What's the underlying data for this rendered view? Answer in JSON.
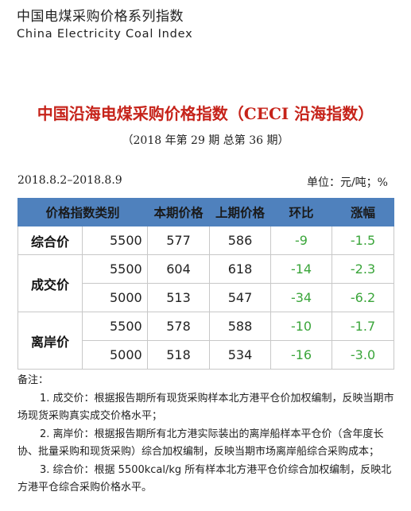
{
  "brand": {
    "name_cn": "中国电煤采购价格系列指数",
    "name_en": "China Electricity Coal Index"
  },
  "report": {
    "title": "中国沿海电煤采购价格指数（CECI 沿海指数）",
    "issue": "（2018 年第 29 期  总第 36 期）",
    "period": "2018.8.2–2018.8.9",
    "unit": "单位：元/吨；%"
  },
  "table": {
    "headers": [
      "价格指数类别",
      "本期价格",
      "上期价格",
      "环比",
      "涨幅"
    ],
    "groups": [
      {
        "category": "综合价",
        "rows": [
          {
            "std": "5500",
            "current": "577",
            "previous": "586",
            "change": "-9",
            "pct": "-1.5"
          }
        ]
      },
      {
        "category": "成交价",
        "rows": [
          {
            "std": "5500",
            "current": "604",
            "previous": "618",
            "change": "-14",
            "pct": "-2.3"
          },
          {
            "std": "5000",
            "current": "513",
            "previous": "547",
            "change": "-34",
            "pct": "-6.2"
          }
        ]
      },
      {
        "category": "离岸价",
        "rows": [
          {
            "std": "5500",
            "current": "578",
            "previous": "588",
            "change": "-10",
            "pct": "-1.7"
          },
          {
            "std": "5000",
            "current": "518",
            "previous": "534",
            "change": "-16",
            "pct": "-3.0"
          }
        ]
      }
    ],
    "colors": {
      "header_bg": "#4f81bd",
      "change_color": "#3aa53a"
    }
  },
  "notes": {
    "title": "备注：",
    "items": [
      "1. 成交价：根据报告期所有现货采购样本北方港平仓价加权编制，反映当期市场现货采购真实成交价格水平；",
      "2. 离岸价：根据报告期所有北方港实际装出的离岸船样本平仓价（含年度长协、批量采购和现货采购）综合加权编制，反映当期市场离岸船综合采购成本；",
      "3. 综合价：根据 5500kcal/kg 所有样本北方港平仓价综合加权编制，反映北方港平仓综合采购价格水平。"
    ]
  }
}
